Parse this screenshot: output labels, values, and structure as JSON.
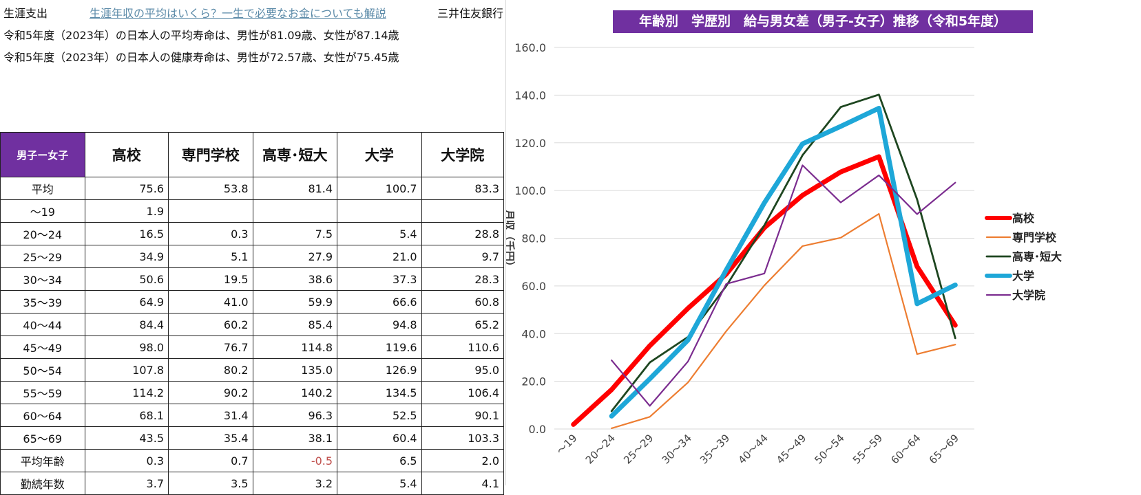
{
  "header": {
    "label": "生涯支出",
    "link": "生涯年収の平均はいくら？一生で必要なお金についても解説",
    "bank": "三井住友銀行",
    "line2": "令和5年度（2023年）の日本人の平均寿命は、男性が81.09歳、女性が87.14歳",
    "line3": "令和5年度（2023年）の日本人の健康寿命は、男性が72.57歳、女性が75.45歳"
  },
  "table": {
    "corner": "男子ー女子",
    "columns": [
      "高校",
      "専門学校",
      "高専･短大",
      "大学",
      "大学院"
    ],
    "rows": [
      {
        "label": "平均",
        "values": [
          "75.6",
          "53.8",
          "81.4",
          "100.7",
          "83.3"
        ]
      },
      {
        "label": "～19",
        "values": [
          "1.9",
          "",
          "",
          "",
          ""
        ]
      },
      {
        "label": "20～24",
        "values": [
          "16.5",
          "0.3",
          "7.5",
          "5.4",
          "28.8"
        ]
      },
      {
        "label": "25～29",
        "values": [
          "34.9",
          "5.1",
          "27.9",
          "21.0",
          "9.7"
        ]
      },
      {
        "label": "30～34",
        "values": [
          "50.6",
          "19.5",
          "38.6",
          "37.3",
          "28.3"
        ]
      },
      {
        "label": "35～39",
        "values": [
          "64.9",
          "41.0",
          "59.9",
          "66.6",
          "60.8"
        ]
      },
      {
        "label": "40～44",
        "values": [
          "84.4",
          "60.2",
          "85.4",
          "94.8",
          "65.2"
        ]
      },
      {
        "label": "45～49",
        "values": [
          "98.0",
          "76.7",
          "114.8",
          "119.6",
          "110.6"
        ]
      },
      {
        "label": "50～54",
        "values": [
          "107.8",
          "80.2",
          "135.0",
          "126.9",
          "95.0"
        ]
      },
      {
        "label": "55～59",
        "values": [
          "114.2",
          "90.2",
          "140.2",
          "134.5",
          "106.4"
        ]
      },
      {
        "label": "60～64",
        "values": [
          "68.1",
          "31.4",
          "96.3",
          "52.5",
          "90.1"
        ]
      },
      {
        "label": "65～69",
        "values": [
          "43.5",
          "35.4",
          "38.1",
          "60.4",
          "103.3"
        ]
      },
      {
        "label": "平均年齢",
        "values": [
          "0.3",
          "0.7",
          "-0.5",
          "6.5",
          "2.0"
        ]
      },
      {
        "label": "勤続年数",
        "values": [
          "3.7",
          "3.5",
          "3.2",
          "5.4",
          "4.1"
        ]
      }
    ],
    "negative_color": "#c0504d"
  },
  "chart_data": {
    "type": "line",
    "title": "年齢別　学歴別　給与男女差（男子-女子）推移（令和5年度）",
    "ylabel": "月収（千円）",
    "xlabel": "",
    "ylim": [
      0,
      160
    ],
    "yticks": [
      "0.0",
      "20.0",
      "40.0",
      "60.0",
      "80.0",
      "100.0",
      "120.0",
      "140.0",
      "160.0"
    ],
    "categories": [
      "～19",
      "20～24",
      "25～29",
      "30～34",
      "35～39",
      "40～44",
      "45～49",
      "50～54",
      "55～59",
      "60～64",
      "65～69"
    ],
    "grid": true,
    "legend_position": "right",
    "series": [
      {
        "name": "高校",
        "color": "#ff0000",
        "width": 7,
        "values": [
          1.9,
          16.5,
          34.9,
          50.6,
          64.9,
          84.4,
          98.0,
          107.8,
          114.2,
          68.1,
          43.5
        ]
      },
      {
        "name": "専門学校",
        "color": "#ed7d31",
        "width": 2.2,
        "values": [
          null,
          0.3,
          5.1,
          19.5,
          41.0,
          60.2,
          76.7,
          80.2,
          90.2,
          31.4,
          35.4
        ]
      },
      {
        "name": "高専･短大",
        "color": "#1e4620",
        "width": 2.8,
        "values": [
          null,
          7.5,
          27.9,
          38.6,
          59.9,
          85.4,
          114.8,
          135.0,
          140.2,
          96.3,
          38.1
        ]
      },
      {
        "name": "大学",
        "color": "#1ea7d8",
        "width": 7,
        "values": [
          null,
          5.4,
          21.0,
          37.3,
          66.6,
          94.8,
          119.6,
          126.9,
          134.5,
          52.5,
          60.4
        ]
      },
      {
        "name": "大学院",
        "color": "#7b2c8f",
        "width": 2.2,
        "values": [
          null,
          28.8,
          9.7,
          28.3,
          60.8,
          65.2,
          110.6,
          95.0,
          106.4,
          90.1,
          103.3
        ]
      }
    ]
  }
}
